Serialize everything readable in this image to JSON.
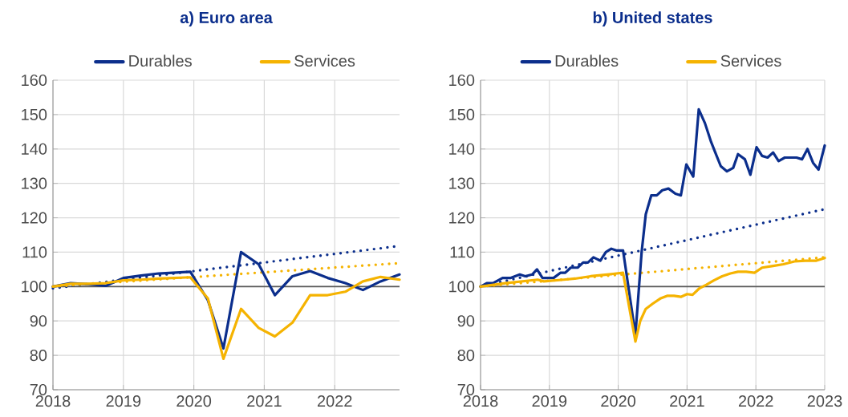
{
  "chart_data": [
    {
      "type": "line",
      "title": "a) Euro area",
      "xlim": [
        2018,
        2022.92
      ],
      "xticks": [
        2018,
        2019,
        2020,
        2021,
        2022
      ],
      "ylim": [
        70,
        160
      ],
      "yticks": [
        70,
        80,
        90,
        100,
        110,
        120,
        130,
        140,
        150,
        160
      ],
      "grid": true,
      "legend": "top",
      "marker": "none",
      "ref_lines": [
        {
          "axis": "y",
          "value": 100,
          "color": "#595959"
        }
      ],
      "series": [
        {
          "name": "Durables",
          "color": "#0b2e8c",
          "line_style": "solid",
          "x": [
            2018.0,
            2018.25,
            2018.5,
            2018.75,
            2019.0,
            2019.25,
            2019.5,
            2019.95,
            2020.2,
            2020.42,
            2020.67,
            2020.92,
            2021.15,
            2021.4,
            2021.65,
            2021.9,
            2022.15,
            2022.4,
            2022.65,
            2022.92
          ],
          "values": [
            100,
            101,
            100.7,
            100.2,
            102.5,
            103.2,
            103.8,
            104.3,
            96,
            82,
            110,
            106.5,
            97.5,
            103,
            104.5,
            102.5,
            101,
            99,
            101.5,
            103.5
          ]
        },
        {
          "name": "Services",
          "color": "#f5b301",
          "line_style": "solid",
          "x": [
            2018.0,
            2018.25,
            2018.5,
            2018.75,
            2019.0,
            2019.25,
            2019.5,
            2019.95,
            2020.2,
            2020.42,
            2020.67,
            2020.92,
            2021.15,
            2021.4,
            2021.65,
            2021.9,
            2022.15,
            2022.4,
            2022.65,
            2022.92
          ],
          "values": [
            100,
            100.8,
            100.8,
            101,
            101.8,
            102,
            102.3,
            102.7,
            96.5,
            79,
            93.5,
            88,
            85.5,
            89.5,
            97.5,
            97.5,
            98.5,
            101.5,
            102.8,
            102
          ]
        },
        {
          "color": "#0b2e8c",
          "line_style": "dotted",
          "x": [
            2018,
            2022.92
          ],
          "values": [
            99.5,
            111.8
          ]
        },
        {
          "color": "#f5b301",
          "line_style": "dotted",
          "x": [
            2018,
            2022.92
          ],
          "values": [
            100,
            106.8
          ]
        }
      ]
    },
    {
      "type": "line",
      "title": "b) United states",
      "xlim": [
        2018,
        2023
      ],
      "xticks": [
        2018,
        2019,
        2020,
        2021,
        2022,
        2023
      ],
      "ylim": [
        70,
        160
      ],
      "yticks": [
        70,
        80,
        90,
        100,
        110,
        120,
        130,
        140,
        150,
        160
      ],
      "grid": true,
      "legend": "top",
      "marker": "none",
      "ref_lines": [
        {
          "axis": "y",
          "value": 100,
          "color": "#595959"
        }
      ],
      "series": [
        {
          "name": "Durables",
          "color": "#0b2e8c",
          "line_style": "solid",
          "x": [
            2018.0,
            2018.09,
            2018.18,
            2018.32,
            2018.44,
            2018.57,
            2018.65,
            2018.75,
            2018.82,
            2018.9,
            2019.06,
            2019.16,
            2019.23,
            2019.31,
            2019.41,
            2019.49,
            2019.56,
            2019.64,
            2019.74,
            2019.82,
            2019.9,
            2019.97,
            2020.07,
            2020.25,
            2020.34,
            2020.4,
            2020.48,
            2020.56,
            2020.64,
            2020.73,
            2020.83,
            2020.91,
            2020.99,
            2021.09,
            2021.17,
            2021.26,
            2021.35,
            2021.41,
            2021.49,
            2021.58,
            2021.67,
            2021.74,
            2021.84,
            2021.92,
            2022.01,
            2022.09,
            2022.17,
            2022.25,
            2022.33,
            2022.42,
            2022.51,
            2022.59,
            2022.67,
            2022.75,
            2022.83,
            2022.91,
            2023.0
          ],
          "values": [
            100,
            101,
            101,
            102.5,
            102.5,
            103.5,
            103,
            103.5,
            105,
            102.5,
            102.5,
            104,
            104,
            105.5,
            105.5,
            107,
            107,
            108.5,
            107.5,
            110,
            111,
            110.5,
            110.5,
            86,
            110,
            121,
            126.5,
            126.5,
            128,
            128.5,
            127,
            126.5,
            135.5,
            132,
            151.5,
            147.5,
            142,
            139,
            135,
            133.5,
            134.5,
            138.5,
            137,
            132.5,
            140.5,
            138,
            137.5,
            139,
            136.5,
            137.5,
            137.5,
            137.5,
            137,
            140,
            136,
            134,
            141
          ]
        },
        {
          "name": "Services",
          "color": "#f5b301",
          "line_style": "solid",
          "x": [
            2018.0,
            2018.36,
            2018.83,
            2018.92,
            2019.21,
            2019.37,
            2019.6,
            2019.84,
            2020.07,
            2020.25,
            2020.32,
            2020.4,
            2020.5,
            2020.61,
            2020.71,
            2020.81,
            2020.91,
            2021.0,
            2021.08,
            2021.18,
            2021.28,
            2021.39,
            2021.51,
            2021.63,
            2021.74,
            2021.86,
            2021.98,
            2022.09,
            2022.25,
            2022.4,
            2022.56,
            2022.72,
            2022.87,
            2023.0
          ],
          "values": [
            100,
            101,
            102,
            101.5,
            102,
            102.3,
            103,
            103.5,
            104,
            84,
            90,
            93.5,
            95,
            96.5,
            97.3,
            97.3,
            97,
            97.8,
            97.6,
            99.5,
            100.5,
            101.8,
            103,
            103.8,
            104.3,
            104.3,
            104,
            105.5,
            106,
            106.5,
            107.3,
            107.5,
            107.5,
            108.3
          ]
        },
        {
          "color": "#0b2e8c",
          "line_style": "dotted",
          "x": [
            2018,
            2023
          ],
          "values": [
            100,
            122.5
          ]
        },
        {
          "color": "#f5b301",
          "line_style": "dotted",
          "x": [
            2018,
            2023
          ],
          "values": [
            100,
            108.5
          ]
        }
      ]
    }
  ]
}
